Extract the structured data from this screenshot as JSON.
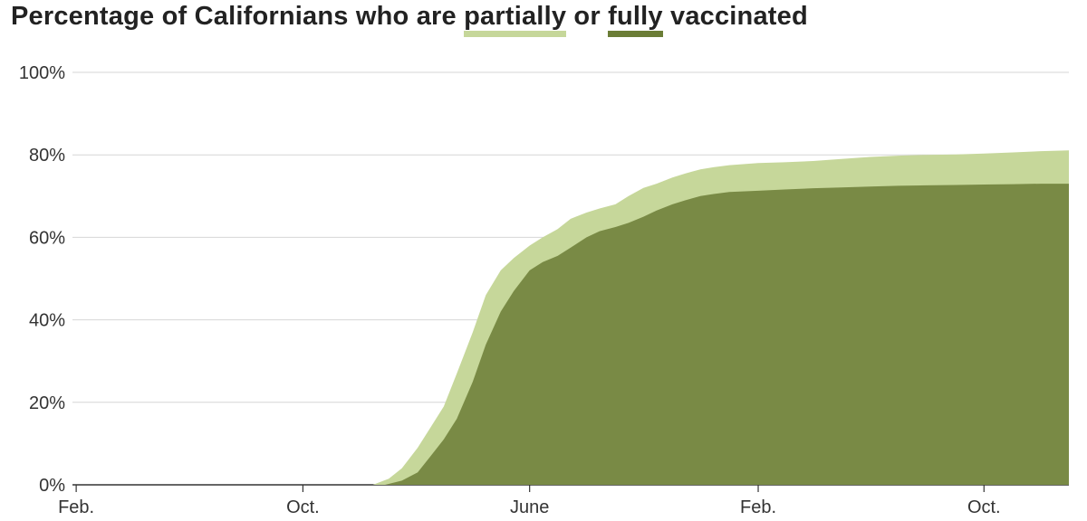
{
  "title": {
    "prefix": "Percentage of Californians who are",
    "partial_word": "partially",
    "middle": "or",
    "full_word": "fully",
    "suffix": "vaccinated"
  },
  "colors": {
    "partial": "#c6d79a",
    "full": "#6b7d36",
    "grid": "#d6d6d6",
    "axis": "#333333"
  },
  "chart_data": {
    "type": "area",
    "title": "Percentage of Californians who are partially or fully vaccinated",
    "xlabel": "",
    "ylabel": "",
    "x_axis": "date",
    "xlim": [
      "2020-01-28",
      "2022-12-31"
    ],
    "ylim": [
      0,
      100
    ],
    "grid": true,
    "yticks": [
      {
        "value": 0,
        "label": "0%"
      },
      {
        "value": 20,
        "label": "20%"
      },
      {
        "value": 40,
        "label": "40%"
      },
      {
        "value": 60,
        "label": "60%"
      },
      {
        "value": 80,
        "label": "80%"
      },
      {
        "value": 100,
        "label": "100%"
      }
    ],
    "xticks": [
      {
        "date": "2020-02-01",
        "label": "Feb."
      },
      {
        "date": "2020-10-01",
        "label": "Oct."
      },
      {
        "date": "2021-06-01",
        "label": "June"
      },
      {
        "date": "2022-02-01",
        "label": "Feb."
      },
      {
        "date": "2022-10-01",
        "label": "Oct."
      }
    ],
    "series": [
      {
        "key": "partial",
        "values": [
          [
            "2020-12-15",
            0
          ],
          [
            "2021-01-01",
            1.5
          ],
          [
            "2021-01-15",
            4
          ],
          [
            "2021-02-01",
            9
          ],
          [
            "2021-02-15",
            14
          ],
          [
            "2021-03-01",
            19
          ],
          [
            "2021-03-15",
            27
          ],
          [
            "2021-04-01",
            37
          ],
          [
            "2021-04-15",
            46
          ],
          [
            "2021-05-01",
            52
          ],
          [
            "2021-05-15",
            55
          ],
          [
            "2021-06-01",
            58
          ],
          [
            "2021-06-15",
            60
          ],
          [
            "2021-07-01",
            62
          ],
          [
            "2021-07-15",
            64.5
          ],
          [
            "2021-08-01",
            66
          ],
          [
            "2021-08-15",
            67
          ],
          [
            "2021-09-01",
            68
          ],
          [
            "2021-09-15",
            70
          ],
          [
            "2021-10-01",
            72
          ],
          [
            "2021-10-15",
            73
          ],
          [
            "2021-11-01",
            74.5
          ],
          [
            "2021-11-15",
            75.5
          ],
          [
            "2021-12-01",
            76.5
          ],
          [
            "2021-12-15",
            77
          ],
          [
            "2022-01-01",
            77.5
          ],
          [
            "2022-02-01",
            78
          ],
          [
            "2022-03-01",
            78.2
          ],
          [
            "2022-04-01",
            78.5
          ],
          [
            "2022-05-01",
            79
          ],
          [
            "2022-06-01",
            79.5
          ],
          [
            "2022-07-01",
            79.8
          ],
          [
            "2022-08-01",
            80
          ],
          [
            "2022-09-01",
            80.1
          ],
          [
            "2022-10-01",
            80.3
          ],
          [
            "2022-11-01",
            80.6
          ],
          [
            "2022-12-01",
            80.9
          ],
          [
            "2022-12-31",
            81.1
          ]
        ]
      },
      {
        "key": "full",
        "values": [
          [
            "2020-12-28",
            0
          ],
          [
            "2021-01-15",
            1
          ],
          [
            "2021-02-01",
            3
          ],
          [
            "2021-02-15",
            7
          ],
          [
            "2021-03-01",
            11
          ],
          [
            "2021-03-15",
            16
          ],
          [
            "2021-04-01",
            25
          ],
          [
            "2021-04-15",
            34
          ],
          [
            "2021-05-01",
            42
          ],
          [
            "2021-05-15",
            47
          ],
          [
            "2021-06-01",
            52
          ],
          [
            "2021-06-15",
            54
          ],
          [
            "2021-07-01",
            55.5
          ],
          [
            "2021-07-15",
            57.5
          ],
          [
            "2021-08-01",
            60
          ],
          [
            "2021-08-15",
            61.5
          ],
          [
            "2021-09-01",
            62.5
          ],
          [
            "2021-09-15",
            63.5
          ],
          [
            "2021-10-01",
            65
          ],
          [
            "2021-10-15",
            66.5
          ],
          [
            "2021-11-01",
            68
          ],
          [
            "2021-11-15",
            69
          ],
          [
            "2021-12-01",
            70
          ],
          [
            "2021-12-15",
            70.5
          ],
          [
            "2022-01-01",
            71
          ],
          [
            "2022-02-01",
            71.3
          ],
          [
            "2022-03-01",
            71.6
          ],
          [
            "2022-04-01",
            71.9
          ],
          [
            "2022-05-01",
            72.1
          ],
          [
            "2022-06-01",
            72.3
          ],
          [
            "2022-07-01",
            72.5
          ],
          [
            "2022-08-01",
            72.6
          ],
          [
            "2022-09-01",
            72.7
          ],
          [
            "2022-10-01",
            72.8
          ],
          [
            "2022-11-01",
            72.9
          ],
          [
            "2022-12-01",
            73
          ],
          [
            "2022-12-31",
            73
          ]
        ]
      }
    ]
  }
}
